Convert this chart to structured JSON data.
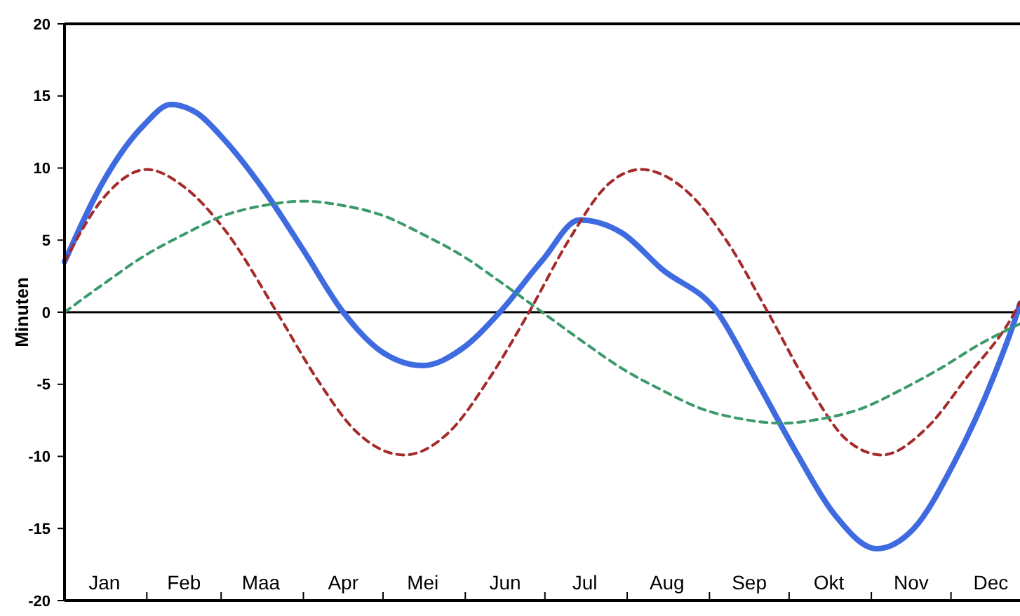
{
  "chart_data": {
    "type": "line",
    "ylabel": "Minuten",
    "xlim": [
      "--01-01",
      "--12-27"
    ],
    "xticks": [
      {
        "value": "--01-16",
        "label": "Jan"
      },
      {
        "value": "--02-01",
        "label": null
      },
      {
        "value": "--02-15",
        "label": "Feb"
      },
      {
        "value": "--03-01",
        "label": null
      },
      {
        "value": "--03-16",
        "label": "Maa"
      },
      {
        "value": "--04-01",
        "label": null
      },
      {
        "value": "--04-16",
        "label": "Apr"
      },
      {
        "value": "--05-01",
        "label": null
      },
      {
        "value": "--05-16",
        "label": "Mei"
      },
      {
        "value": "--06-01",
        "label": null
      },
      {
        "value": "--06-16",
        "label": "Jun"
      },
      {
        "value": "--07-01",
        "label": null
      },
      {
        "value": "--07-16",
        "label": "Jul"
      },
      {
        "value": "--08-01",
        "label": null
      },
      {
        "value": "--08-16",
        "label": "Aug"
      },
      {
        "value": "--09-01",
        "label": null
      },
      {
        "value": "--09-16",
        "label": "Sep"
      },
      {
        "value": "--10-01",
        "label": null
      },
      {
        "value": "--10-16",
        "label": "Okt"
      },
      {
        "value": "--11-01",
        "label": null
      },
      {
        "value": "--11-16",
        "label": "Nov"
      },
      {
        "value": "--12-01",
        "label": null
      },
      {
        "value": "--12-16",
        "label": "Dec"
      }
    ],
    "ylim": [
      -20,
      20
    ],
    "yticks": [
      -20,
      -15,
      -10,
      -5,
      0,
      5,
      10,
      15,
      20
    ],
    "grid": false,
    "marker": "none",
    "ref_lines": [
      {
        "axis": "y",
        "value": 0,
        "color": "#000000"
      }
    ],
    "series": [
      {
        "color": "#3f6be0",
        "line_style": "solid",
        "x": [
          "--01-01",
          "--01-16",
          "--01-31",
          "--02-10",
          "--02-20",
          "--03-02",
          "--03-17",
          "--04-01",
          "--04-16",
          "--05-01",
          "--05-16",
          "--05-31",
          "--06-14",
          "--06-30",
          "--07-14",
          "--07-30",
          "--08-14",
          "--09-04",
          "--09-18",
          "--10-03",
          "--10-18",
          "--11-03",
          "--11-17",
          "--12-02",
          "--12-17",
          "--12-26",
          "--12-27"
        ],
        "values": [
          3.5,
          9.2,
          13.0,
          14.4,
          13.8,
          12.0,
          8.5,
          4.3,
          0,
          -2.8,
          -3.7,
          -2.5,
          0,
          3.6,
          6.4,
          5.5,
          3.0,
          0,
          -4.5,
          -9.5,
          -14.0,
          -16.4,
          -15.0,
          -10.5,
          -4.5,
          0,
          0.6
        ]
      },
      {
        "color": "#a52a2a",
        "line_style": "dashed",
        "x": [
          "--01-01",
          "--01-16",
          "--02-01",
          "--02-15",
          "--03-02",
          "--03-22",
          "--04-06",
          "--04-21",
          "--05-09",
          "--05-26",
          "--06-10",
          "--06-25",
          "--07-10",
          "--07-25",
          "--08-06",
          "--08-24",
          "--09-08",
          "--09-23",
          "--10-08",
          "--10-23",
          "--11-05",
          "--11-22",
          "--12-07",
          "--12-25",
          "--12-27"
        ],
        "values": [
          3.5,
          8.0,
          9.9,
          8.7,
          5.8,
          0,
          -4.6,
          -8.3,
          -9.9,
          -8.3,
          -4.6,
          0,
          5.0,
          8.9,
          9.9,
          8.3,
          4.8,
          0,
          -5.0,
          -8.9,
          -9.9,
          -8.0,
          -4.5,
          0,
          0.7
        ]
      },
      {
        "color": "#3a9a6a",
        "line_style": "dashed",
        "x": [
          "--01-01",
          "--01-16",
          "--01-31",
          "--02-15",
          "--03-02",
          "--03-17",
          "--04-01",
          "--04-16",
          "--05-01",
          "--05-16",
          "--05-31",
          "--06-15",
          "--06-30",
          "--07-15",
          "--07-30",
          "--08-14",
          "--08-29",
          "--09-13",
          "--09-28",
          "--10-13",
          "--10-28",
          "--11-12",
          "--11-27",
          "--12-12",
          "--12-27"
        ],
        "values": [
          0,
          2.0,
          3.9,
          5.4,
          6.7,
          7.4,
          7.7,
          7.4,
          6.7,
          5.4,
          3.9,
          2.0,
          0,
          -2.0,
          -3.9,
          -5.4,
          -6.7,
          -7.4,
          -7.7,
          -7.4,
          -6.7,
          -5.4,
          -3.9,
          -2.2,
          -0.8
        ]
      }
    ]
  }
}
